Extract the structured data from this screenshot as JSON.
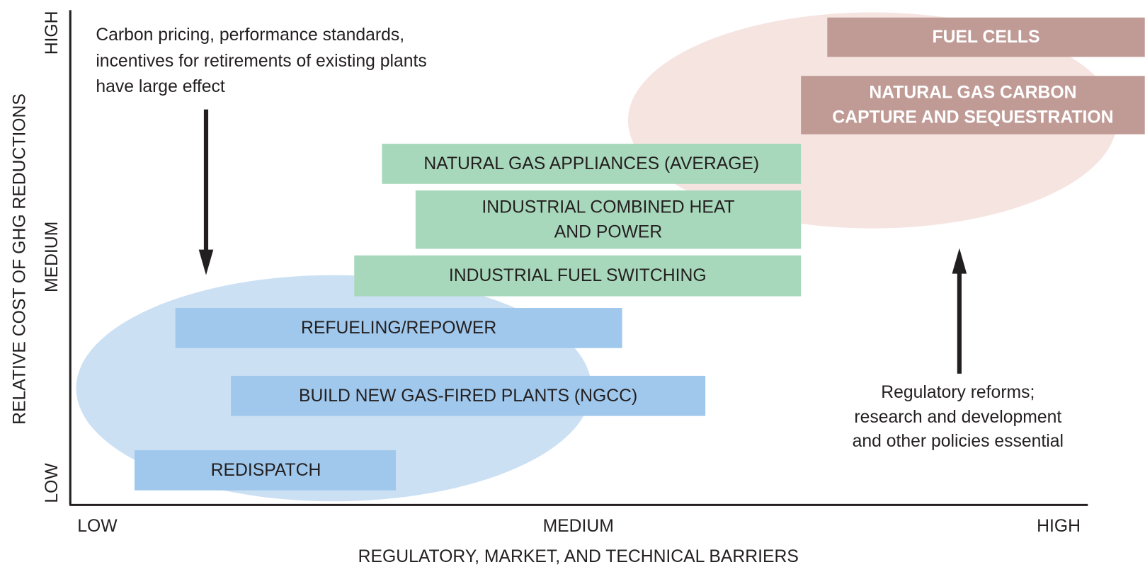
{
  "axes": {
    "y_title": "RELATIVE COST OF GHG REDUCTIONS",
    "y_labels": [
      "HIGH",
      "MEDIUM",
      "LOW"
    ],
    "x_title": "REGULATORY, MARKET, AND TECHNICAL BARRIERS",
    "x_labels": [
      "LOW",
      "MEDIUM",
      "HIGH"
    ]
  },
  "boxes": [
    {
      "lines": [
        "FUEL CELLS"
      ]
    },
    {
      "lines": [
        "NATURAL GAS CARBON",
        "CAPTURE AND SEQUESTRATION"
      ]
    },
    {
      "lines": [
        "NATURAL GAS APPLIANCES (AVERAGE)"
      ]
    },
    {
      "lines": [
        "INDUSTRIAL COMBINED HEAT",
        "AND POWER"
      ]
    },
    {
      "lines": [
        "INDUSTRIAL FUEL SWITCHING"
      ]
    },
    {
      "lines": [
        "REFUELING/REPOWER"
      ]
    },
    {
      "lines": [
        "BUILD NEW GAS-FIRED PLANTS (NGCC)"
      ]
    },
    {
      "lines": [
        "REDISPATCH"
      ]
    }
  ],
  "notes": [
    {
      "lines": [
        "Carbon pricing, performance standards,",
        "incentives for retirements of existing plants",
        "have large effect"
      ]
    },
    {
      "lines": [
        "Regulatory reforms;",
        "research and development",
        "and other policies essential"
      ]
    }
  ]
}
